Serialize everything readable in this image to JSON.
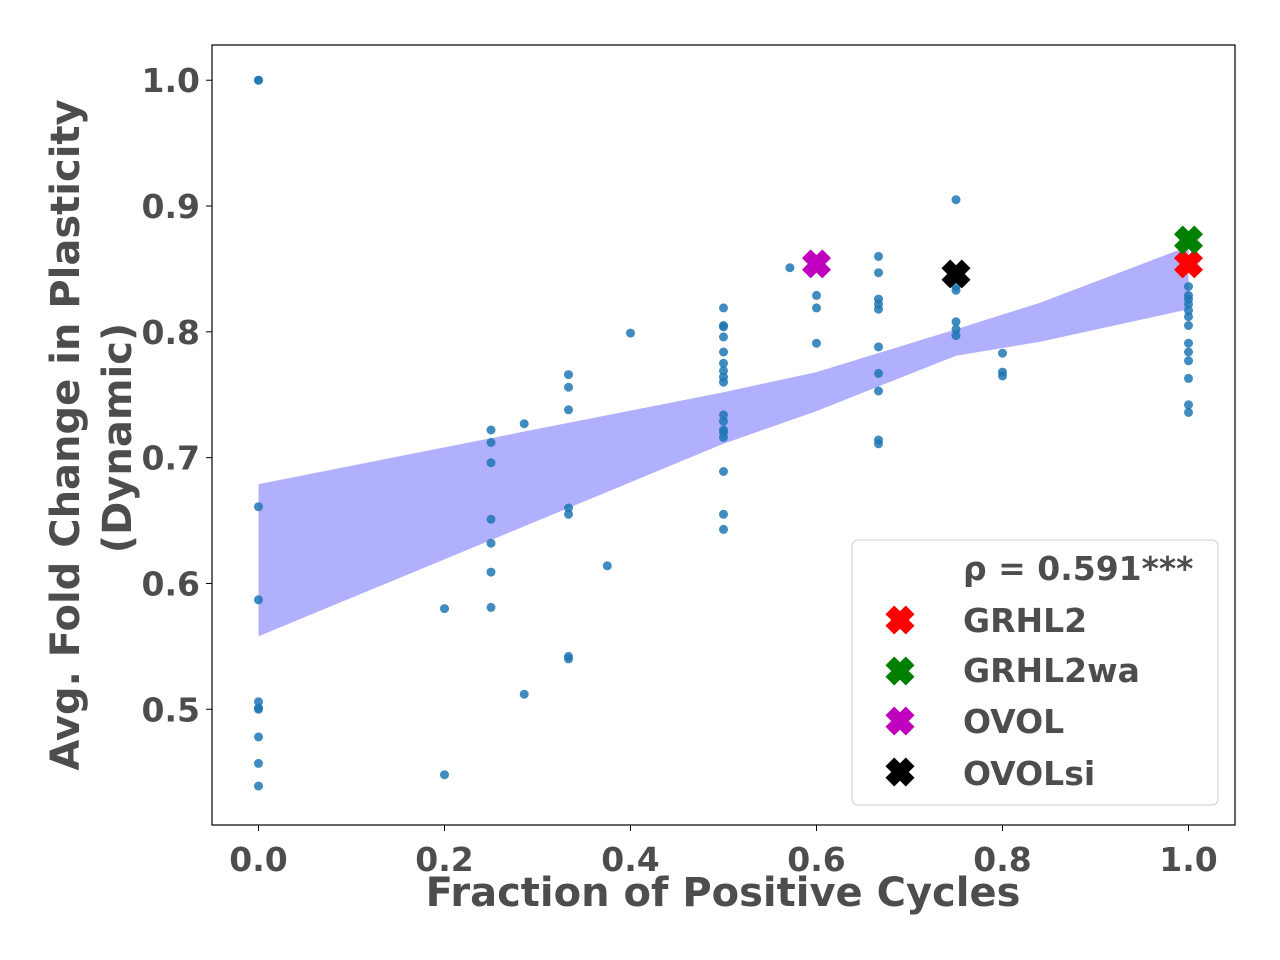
{
  "chart_data": {
    "type": "scatter",
    "xlabel": "Fraction of Positive Cycles",
    "ylabel_line1": "Avg. Fold Change in Plasticity",
    "ylabel_line2": "(Dynamic)",
    "xlim": [
      -0.05,
      1.05
    ],
    "ylim": [
      0.408,
      1.028
    ],
    "xticks": [
      0.0,
      0.2,
      0.4,
      0.6,
      0.8,
      1.0
    ],
    "xtick_labels": [
      "0.0",
      "0.2",
      "0.4",
      "0.6",
      "0.8",
      "1.0"
    ],
    "yticks": [
      0.5,
      0.6,
      0.7,
      0.8,
      0.9,
      1.0
    ],
    "ytick_labels": [
      "0.5",
      "0.6",
      "0.7",
      "0.8",
      "0.9",
      "1.0"
    ],
    "point_color": "#1f77b4",
    "band_color": "#b0b0ff",
    "points": [
      [
        0.0,
        1.0
      ],
      [
        0.0,
        1.0
      ],
      [
        0.0,
        0.661
      ],
      [
        0.0,
        0.587
      ],
      [
        0.0,
        0.506
      ],
      [
        0.0,
        0.501
      ],
      [
        0.0,
        0.5
      ],
      [
        0.0,
        0.478
      ],
      [
        0.0,
        0.457
      ],
      [
        0.0,
        0.439
      ],
      [
        0.2,
        0.58
      ],
      [
        0.2,
        0.448
      ],
      [
        0.25,
        0.722
      ],
      [
        0.25,
        0.712
      ],
      [
        0.25,
        0.696
      ],
      [
        0.25,
        0.651
      ],
      [
        0.25,
        0.632
      ],
      [
        0.25,
        0.609
      ],
      [
        0.25,
        0.581
      ],
      [
        0.2857,
        0.727
      ],
      [
        0.2857,
        0.512
      ],
      [
        0.3333,
        0.766
      ],
      [
        0.3333,
        0.756
      ],
      [
        0.3333,
        0.738
      ],
      [
        0.3333,
        0.66
      ],
      [
        0.3333,
        0.655
      ],
      [
        0.3333,
        0.542
      ],
      [
        0.3333,
        0.54
      ],
      [
        0.375,
        0.614
      ],
      [
        0.4,
        0.799
      ],
      [
        0.5,
        0.819
      ],
      [
        0.5,
        0.805
      ],
      [
        0.5,
        0.804
      ],
      [
        0.5,
        0.796
      ],
      [
        0.5,
        0.784
      ],
      [
        0.5,
        0.775
      ],
      [
        0.5,
        0.769
      ],
      [
        0.5,
        0.764
      ],
      [
        0.5,
        0.76
      ],
      [
        0.5,
        0.734
      ],
      [
        0.5,
        0.729
      ],
      [
        0.5,
        0.722
      ],
      [
        0.5,
        0.72
      ],
      [
        0.5,
        0.716
      ],
      [
        0.5,
        0.689
      ],
      [
        0.5,
        0.655
      ],
      [
        0.5,
        0.643
      ],
      [
        0.5714,
        0.851
      ],
      [
        0.6,
        0.829
      ],
      [
        0.6,
        0.819
      ],
      [
        0.6,
        0.791
      ],
      [
        0.6667,
        0.86
      ],
      [
        0.6667,
        0.847
      ],
      [
        0.6667,
        0.826
      ],
      [
        0.6667,
        0.822
      ],
      [
        0.6667,
        0.818
      ],
      [
        0.6667,
        0.788
      ],
      [
        0.6667,
        0.767
      ],
      [
        0.6667,
        0.753
      ],
      [
        0.6667,
        0.714
      ],
      [
        0.6667,
        0.711
      ],
      [
        0.75,
        0.905
      ],
      [
        0.75,
        0.843
      ],
      [
        0.75,
        0.836
      ],
      [
        0.75,
        0.833
      ],
      [
        0.75,
        0.808
      ],
      [
        0.75,
        0.802
      ],
      [
        0.75,
        0.797
      ],
      [
        0.8,
        0.783
      ],
      [
        0.8,
        0.768
      ],
      [
        0.8,
        0.765
      ],
      [
        1.0,
        0.836
      ],
      [
        1.0,
        0.829
      ],
      [
        1.0,
        0.826
      ],
      [
        1.0,
        0.822
      ],
      [
        1.0,
        0.817
      ],
      [
        1.0,
        0.812
      ],
      [
        1.0,
        0.805
      ],
      [
        1.0,
        0.791
      ],
      [
        1.0,
        0.784
      ],
      [
        1.0,
        0.777
      ],
      [
        1.0,
        0.763
      ],
      [
        1.0,
        0.742
      ],
      [
        1.0,
        0.736
      ]
    ],
    "confidence_band": {
      "x": [
        0.0,
        0.5,
        0.6,
        0.75,
        0.84,
        1.0
      ],
      "upper": [
        0.679,
        0.752,
        0.768,
        0.802,
        0.823,
        0.868
      ],
      "lower": [
        0.558,
        0.711,
        0.737,
        0.781,
        0.792,
        0.818
      ]
    },
    "highlights": [
      {
        "label": "GRHL2",
        "x": 1.0,
        "y": 0.854,
        "color": "#ff0000"
      },
      {
        "label": "GRHL2wa",
        "x": 1.0,
        "y": 0.873,
        "color": "#008000"
      },
      {
        "label": "OVOL",
        "x": 0.6,
        "y": 0.854,
        "color": "#bf00bf"
      },
      {
        "label": "OVOLsi",
        "x": 0.75,
        "y": 0.846,
        "color": "#000000"
      }
    ],
    "legend": {
      "placement": "lower right",
      "correlation_text": "ρ = 0.591***",
      "entries": [
        "GRHL2",
        "GRHL2wa",
        "OVOL",
        "OVOLsi"
      ]
    }
  }
}
